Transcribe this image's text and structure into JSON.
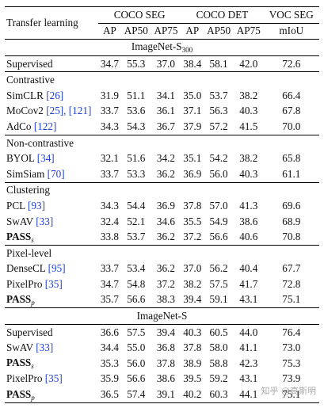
{
  "header": {
    "row_label": "Transfer learning",
    "groups": [
      "COCO SEG",
      "COCO DET",
      "VOC SEG"
    ],
    "metrics": [
      "AP",
      "AP50",
      "AP75",
      "AP",
      "AP50",
      "AP75",
      "mIoU"
    ]
  },
  "sections": [
    {
      "title": "ImageNet-S",
      "title_sub": "300",
      "groups": [
        {
          "label": "",
          "rows": [
            {
              "name": "Supervised",
              "ref": "",
              "bold": false,
              "sub": "",
              "values": [
                "34.7",
                "55.3",
                "37.0",
                "38.4",
                "58.1",
                "42.0",
                "72.6"
              ]
            }
          ]
        },
        {
          "label": "Contrastive",
          "rows": [
            {
              "name": "SimCLR ",
              "ref": "[26]",
              "bold": false,
              "sub": "",
              "values": [
                "31.9",
                "51.1",
                "34.1",
                "35.0",
                "53.7",
                "38.2",
                "66.4"
              ]
            },
            {
              "name": "MoCov2 ",
              "ref": "[25], [121]",
              "bold": false,
              "sub": "",
              "values": [
                "33.7",
                "53.6",
                "36.1",
                "37.1",
                "56.3",
                "40.3",
                "67.8"
              ]
            },
            {
              "name": "AdCo ",
              "ref": "[122]",
              "bold": false,
              "sub": "",
              "values": [
                "34.3",
                "54.3",
                "36.7",
                "37.9",
                "57.2",
                "41.5",
                "70.0"
              ]
            }
          ]
        },
        {
          "label": "Non-contrastive",
          "rows": [
            {
              "name": "BYOL ",
              "ref": "[34]",
              "bold": false,
              "sub": "",
              "values": [
                "32.1",
                "51.6",
                "34.2",
                "35.1",
                "54.2",
                "38.2",
                "65.8"
              ]
            },
            {
              "name": "SimSiam ",
              "ref": "[70]",
              "bold": false,
              "sub": "",
              "values": [
                "33.7",
                "53.3",
                "36.2",
                "36.9",
                "56.0",
                "40.3",
                "61.1"
              ]
            }
          ]
        },
        {
          "label": "Clustering",
          "rows": [
            {
              "name": "PCL ",
              "ref": "[93]",
              "bold": false,
              "sub": "",
              "values": [
                "34.3",
                "54.4",
                "36.9",
                "37.8",
                "57.0",
                "41.3",
                "69.6"
              ]
            },
            {
              "name": "SwAV ",
              "ref": "[33]",
              "bold": false,
              "sub": "",
              "values": [
                "32.4",
                "52.1",
                "34.6",
                "35.5",
                "54.9",
                "38.6",
                "68.9"
              ]
            },
            {
              "name": "PASS",
              "ref": "",
              "bold": true,
              "sub": "s",
              "values": [
                "33.8",
                "53.7",
                "36.2",
                "37.2",
                "56.6",
                "40.6",
                "70.8"
              ]
            }
          ]
        },
        {
          "label": "Pixel-level",
          "rows": [
            {
              "name": "DenseCL ",
              "ref": "[95]",
              "bold": false,
              "sub": "",
              "values": [
                "33.7",
                "53.4",
                "36.2",
                "37.0",
                "56.2",
                "40.4",
                "67.7"
              ]
            },
            {
              "name": "PixelPro ",
              "ref": "[35]",
              "bold": false,
              "sub": "",
              "values": [
                "34.7",
                "54.8",
                "37.2",
                "38.2",
                "57.5",
                "41.7",
                "72.8"
              ]
            },
            {
              "name": "PASS",
              "ref": "",
              "bold": true,
              "sub": "p",
              "values": [
                "35.7",
                "56.6",
                "38.3",
                "39.4",
                "59.1",
                "43.1",
                "75.1"
              ]
            }
          ]
        }
      ]
    },
    {
      "title": "ImageNet-S",
      "title_sub": "",
      "groups": [
        {
          "label": "",
          "rows": [
            {
              "name": "Supervised",
              "ref": "",
              "bold": false,
              "sub": "",
              "values": [
                "36.6",
                "57.5",
                "39.4",
                "40.3",
                "60.5",
                "44.0",
                "76.4"
              ]
            },
            {
              "name": "SwAV ",
              "ref": "[33]",
              "bold": false,
              "sub": "",
              "values": [
                "34.4",
                "55.0",
                "36.8",
                "37.8",
                "58.0",
                "41.1",
                "73.0"
              ]
            },
            {
              "name": "PASS",
              "ref": "",
              "bold": true,
              "sub": "s",
              "values": [
                "35.3",
                "56.0",
                "37.8",
                "38.9",
                "58.8",
                "42.3",
                "75.3"
              ]
            },
            {
              "name": "PixelPro ",
              "ref": "[35]",
              "bold": false,
              "sub": "",
              "values": [
                "35.9",
                "56.6",
                "38.6",
                "39.5",
                "59.2",
                "43.1",
                "73.9"
              ]
            },
            {
              "name": "PASS",
              "ref": "",
              "bold": true,
              "sub": "p",
              "values": [
                "36.5",
                "57.4",
                "39.1",
                "40.2",
                "60.3",
                "44.1",
                "75.1"
              ]
            }
          ]
        }
      ]
    }
  ],
  "watermark": "知乎 @高斯明"
}
